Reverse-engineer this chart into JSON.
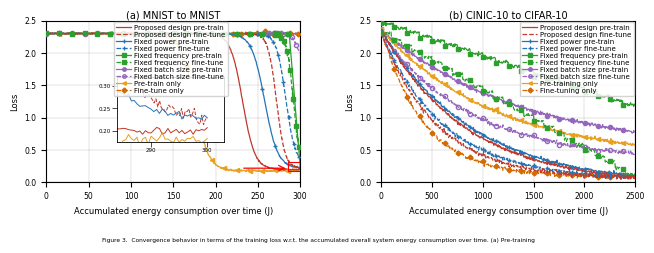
{
  "fig_width": 6.4,
  "fig_height": 2.59,
  "dpi": 100,
  "subplot_a": {
    "title": "(a) MNIST to MNIST",
    "xlabel": "Accumulated energy consumption over time (J)",
    "ylabel": "Loss",
    "xlim": [
      0,
      300
    ],
    "ylim": [
      0,
      2.5
    ],
    "xticks": [
      0,
      50,
      100,
      150,
      200,
      250,
      300
    ],
    "yticks": [
      0.0,
      0.5,
      1.0,
      1.5,
      2.0,
      2.5
    ]
  },
  "subplot_b": {
    "title": "(b) CINIC-10 to CIFAR-10",
    "xlabel": "Accumulated energy consumption over time (J)",
    "ylabel": "Loss",
    "xlim": [
      0,
      2500
    ],
    "ylim": [
      0,
      2.5
    ],
    "xticks": [
      0,
      500,
      1000,
      1500,
      2000,
      2500
    ],
    "yticks": [
      0.0,
      0.5,
      1.0,
      1.5,
      2.0,
      2.5
    ]
  },
  "colors": {
    "proposed": "#c0392b",
    "fixed_power": "#2474b5",
    "fixed_freq": "#2ca02c",
    "fixed_batch": "#9467bd",
    "pretrain_only": "#e8a020",
    "finetune_only": "#d46a00"
  },
  "legend_fontsize": 5.0,
  "axis_fontsize": 6.0,
  "tick_fontsize": 5.5,
  "title_fontsize": 7.0,
  "lw": 0.9,
  "ms": 3.0
}
